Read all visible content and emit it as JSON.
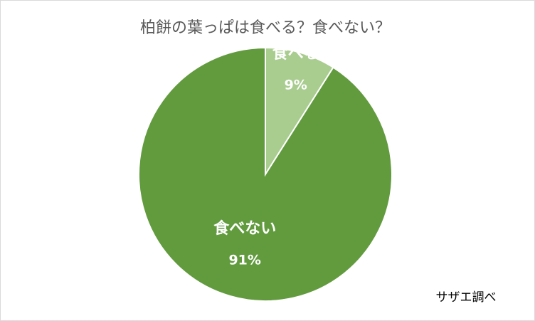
{
  "chart_data": {
    "type": "pie",
    "title": "柏餅の葉っぱは食べる？食べない？",
    "categories": [
      "食べる",
      "食べない"
    ],
    "values": [
      9,
      91
    ],
    "value_labels": [
      "9%",
      "91%"
    ],
    "colors": [
      "#a9cc8f",
      "#629b3e"
    ],
    "annotation": "サザエ調べ"
  }
}
